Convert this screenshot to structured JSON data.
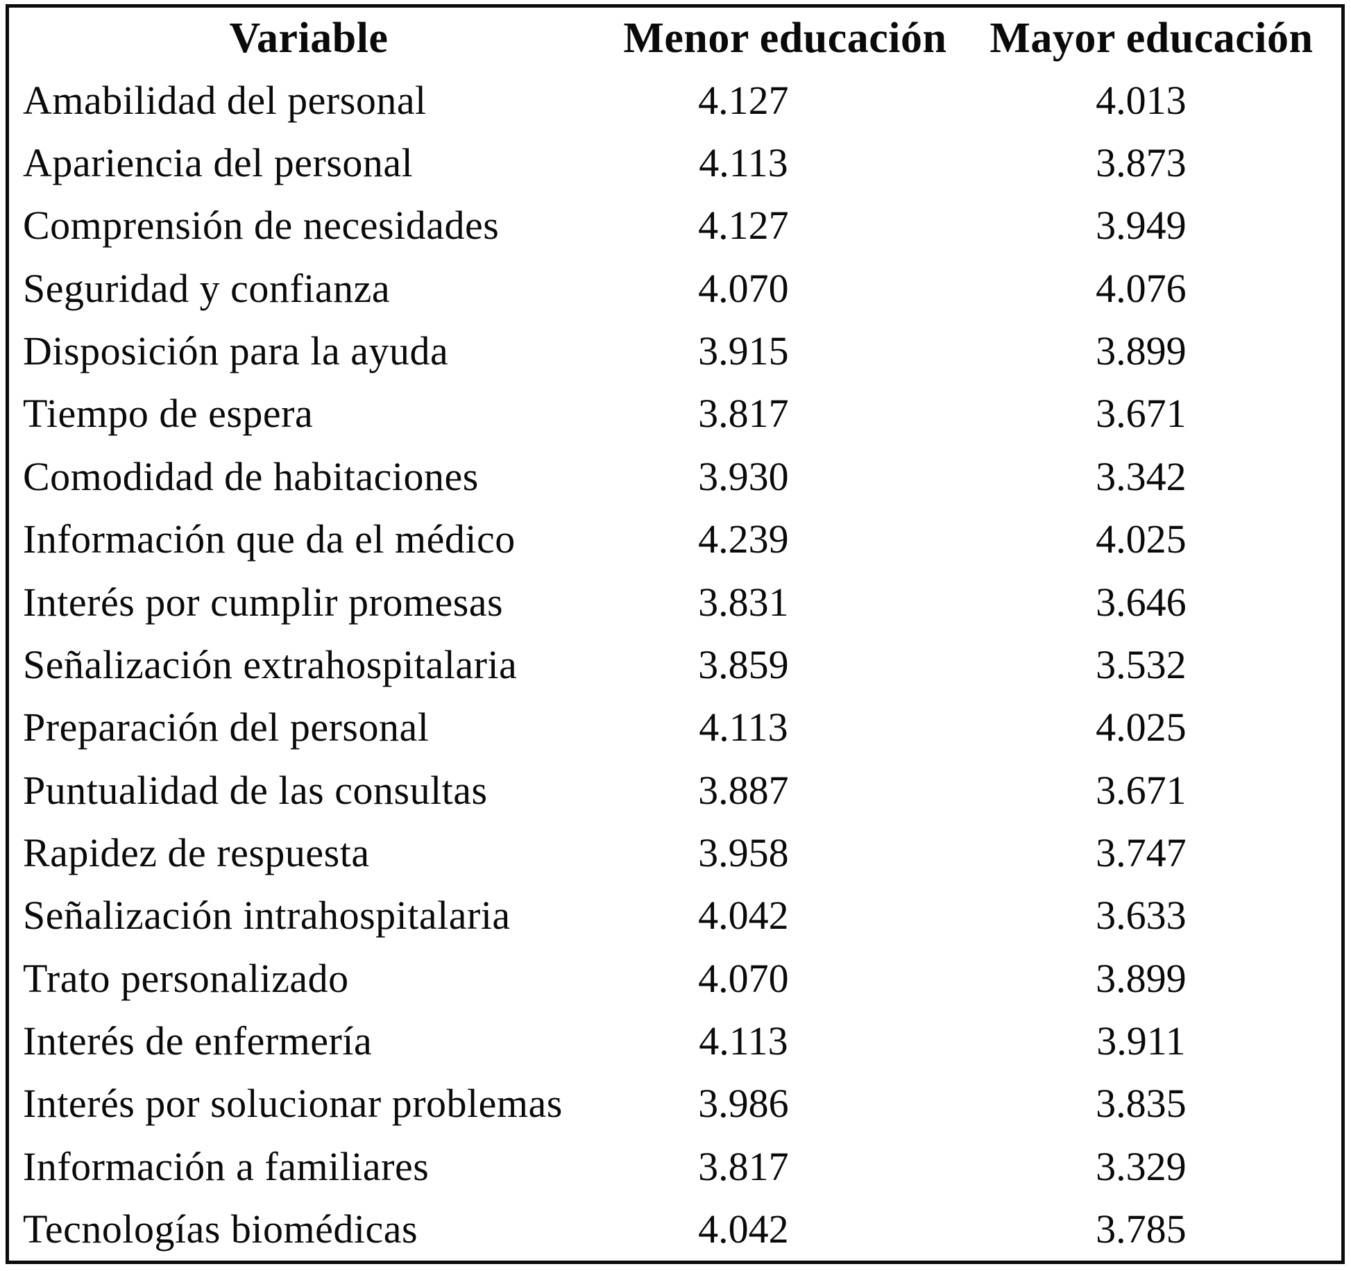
{
  "table": {
    "columns": [
      {
        "key": "variable",
        "label": "Variable"
      },
      {
        "key": "menor",
        "label": "Menor educación"
      },
      {
        "key": "mayor",
        "label": "Mayor educación"
      }
    ],
    "rows": [
      {
        "variable": "Amabilidad del personal",
        "menor": "4.127",
        "mayor": "4.013"
      },
      {
        "variable": "Apariencia del personal",
        "menor": "4.113",
        "mayor": "3.873"
      },
      {
        "variable": "Comprensión de necesidades",
        "menor": "4.127",
        "mayor": "3.949"
      },
      {
        "variable": "Seguridad y confianza",
        "menor": "4.070",
        "mayor": "4.076"
      },
      {
        "variable": "Disposición para la ayuda",
        "menor": "3.915",
        "mayor": "3.899"
      },
      {
        "variable": "Tiempo de espera",
        "menor": "3.817",
        "mayor": "3.671"
      },
      {
        "variable": "Comodidad de habitaciones",
        "menor": "3.930",
        "mayor": "3.342"
      },
      {
        "variable": "Información que da el médico",
        "menor": "4.239",
        "mayor": "4.025"
      },
      {
        "variable": "Interés por cumplir promesas",
        "menor": "3.831",
        "mayor": "3.646"
      },
      {
        "variable": "Señalización extrahospitalaria",
        "menor": "3.859",
        "mayor": "3.532"
      },
      {
        "variable": "Preparación del personal",
        "menor": "4.113",
        "mayor": "4.025"
      },
      {
        "variable": "Puntualidad de las consultas",
        "menor": "3.887",
        "mayor": "3.671"
      },
      {
        "variable": "Rapidez de respuesta",
        "menor": "3.958",
        "mayor": "3.747"
      },
      {
        "variable": "Señalización intrahospitalaria",
        "menor": "4.042",
        "mayor": "3.633"
      },
      {
        "variable": "Trato personalizado",
        "menor": "4.070",
        "mayor": "3.899"
      },
      {
        "variable": "Interés de enfermería",
        "menor": "4.113",
        "mayor": "3.911"
      },
      {
        "variable": "Interés por solucionar problemas",
        "menor": "3.986",
        "mayor": "3.835"
      },
      {
        "variable": "Información a familiares",
        "menor": "3.817",
        "mayor": "3.329"
      },
      {
        "variable": "Tecnologías biomédicas",
        "menor": "4.042",
        "mayor": "3.785"
      }
    ]
  },
  "chart_data": {
    "type": "table",
    "title": "",
    "columns": [
      "Variable",
      "Menor educación",
      "Mayor educación"
    ],
    "rows": [
      [
        "Amabilidad del personal",
        4.127,
        4.013
      ],
      [
        "Apariencia del personal",
        4.113,
        3.873
      ],
      [
        "Comprensión de necesidades",
        4.127,
        3.949
      ],
      [
        "Seguridad y confianza",
        4.07,
        4.076
      ],
      [
        "Disposición para la ayuda",
        3.915,
        3.899
      ],
      [
        "Tiempo de espera",
        3.817,
        3.671
      ],
      [
        "Comodidad de habitaciones",
        3.93,
        3.342
      ],
      [
        "Información que da el médico",
        4.239,
        4.025
      ],
      [
        "Interés por cumplir promesas",
        3.831,
        3.646
      ],
      [
        "Señalización extrahospitalaria",
        3.859,
        3.532
      ],
      [
        "Preparación del personal",
        4.113,
        4.025
      ],
      [
        "Puntualidad de las consultas",
        3.887,
        3.671
      ],
      [
        "Rapidez de respuesta",
        3.958,
        3.747
      ],
      [
        "Señalización intrahospitalaria",
        4.042,
        3.633
      ],
      [
        "Trato personalizado",
        4.07,
        3.899
      ],
      [
        "Interés de enfermería",
        4.113,
        3.911
      ],
      [
        "Interés por solucionar problemas",
        3.986,
        3.835
      ],
      [
        "Información a familiares",
        3.817,
        3.329
      ],
      [
        "Tecnologías biomédicas",
        4.042,
        3.785
      ]
    ]
  },
  "colors": {
    "background": "#ffffff",
    "border": "#0c0c0c",
    "text": "#0a0a0a"
  }
}
